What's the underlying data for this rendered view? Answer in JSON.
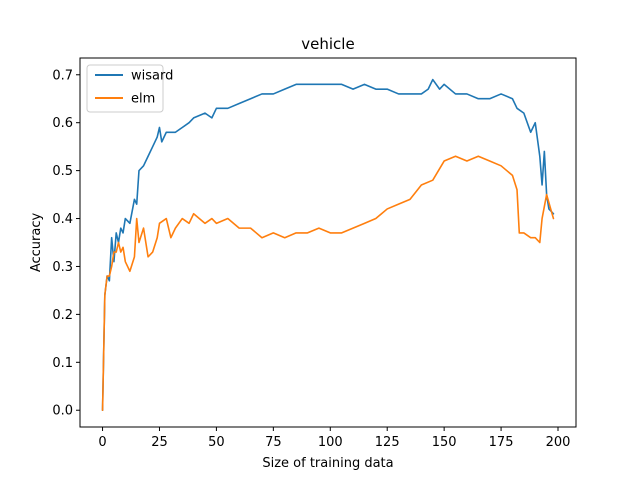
{
  "chart_data": {
    "type": "line",
    "title": "vehicle",
    "xlabel": "Size of training data",
    "ylabel": "Accuracy",
    "xlim": [
      -9.9,
      207.9
    ],
    "ylim": [
      -0.035,
      0.735
    ],
    "xticks": [
      0,
      25,
      50,
      75,
      100,
      125,
      150,
      175,
      200
    ],
    "xtick_labels": [
      "0",
      "25",
      "50",
      "75",
      "100",
      "125",
      "150",
      "175",
      "200"
    ],
    "yticks": [
      0.0,
      0.1,
      0.2,
      0.3,
      0.4,
      0.5,
      0.6,
      0.7
    ],
    "ytick_labels": [
      "0.0",
      "0.1",
      "0.2",
      "0.3",
      "0.4",
      "0.5",
      "0.6",
      "0.7"
    ],
    "grid": false,
    "legend_position": "top-left",
    "series": [
      {
        "name": "wisard",
        "color": "#1f77b4",
        "x": [
          0,
          1,
          2,
          3,
          4,
          5,
          6,
          7,
          8,
          9,
          10,
          12,
          14,
          15,
          16,
          18,
          20,
          22,
          24,
          25,
          26,
          28,
          30,
          32,
          35,
          38,
          40,
          45,
          48,
          50,
          55,
          60,
          65,
          70,
          75,
          80,
          85,
          90,
          95,
          100,
          105,
          110,
          115,
          120,
          125,
          130,
          135,
          140,
          143,
          145,
          148,
          150,
          155,
          160,
          165,
          170,
          175,
          180,
          182,
          185,
          188,
          190,
          192,
          193,
          194,
          195,
          196,
          198
        ],
        "y": [
          0.0,
          0.24,
          0.28,
          0.27,
          0.36,
          0.31,
          0.37,
          0.35,
          0.38,
          0.37,
          0.4,
          0.39,
          0.44,
          0.43,
          0.5,
          0.51,
          0.53,
          0.55,
          0.57,
          0.59,
          0.56,
          0.58,
          0.58,
          0.58,
          0.59,
          0.6,
          0.61,
          0.62,
          0.61,
          0.63,
          0.63,
          0.64,
          0.65,
          0.66,
          0.66,
          0.67,
          0.68,
          0.68,
          0.68,
          0.68,
          0.68,
          0.67,
          0.68,
          0.67,
          0.67,
          0.66,
          0.66,
          0.66,
          0.67,
          0.69,
          0.67,
          0.68,
          0.66,
          0.66,
          0.65,
          0.65,
          0.66,
          0.65,
          0.63,
          0.62,
          0.58,
          0.6,
          0.53,
          0.47,
          0.54,
          0.45,
          0.42,
          0.41
        ]
      },
      {
        "name": "elm",
        "color": "#ff7f0e",
        "x": [
          0,
          1,
          2,
          3,
          4,
          5,
          6,
          7,
          8,
          9,
          10,
          12,
          14,
          15,
          16,
          18,
          20,
          22,
          24,
          25,
          28,
          30,
          32,
          35,
          38,
          40,
          45,
          48,
          50,
          55,
          60,
          65,
          70,
          75,
          80,
          85,
          90,
          95,
          100,
          105,
          110,
          115,
          120,
          125,
          130,
          135,
          140,
          145,
          150,
          155,
          160,
          165,
          170,
          175,
          180,
          182,
          183,
          185,
          188,
          190,
          192,
          193,
          195,
          198
        ],
        "y": [
          0.0,
          0.24,
          0.28,
          0.28,
          0.3,
          0.33,
          0.33,
          0.35,
          0.33,
          0.34,
          0.31,
          0.29,
          0.32,
          0.4,
          0.35,
          0.38,
          0.32,
          0.33,
          0.36,
          0.39,
          0.4,
          0.36,
          0.38,
          0.4,
          0.39,
          0.41,
          0.39,
          0.4,
          0.39,
          0.4,
          0.38,
          0.38,
          0.36,
          0.37,
          0.36,
          0.37,
          0.37,
          0.38,
          0.37,
          0.37,
          0.38,
          0.39,
          0.4,
          0.42,
          0.43,
          0.44,
          0.47,
          0.48,
          0.52,
          0.53,
          0.52,
          0.53,
          0.52,
          0.51,
          0.49,
          0.46,
          0.37,
          0.37,
          0.36,
          0.36,
          0.35,
          0.4,
          0.45,
          0.4
        ]
      }
    ]
  }
}
